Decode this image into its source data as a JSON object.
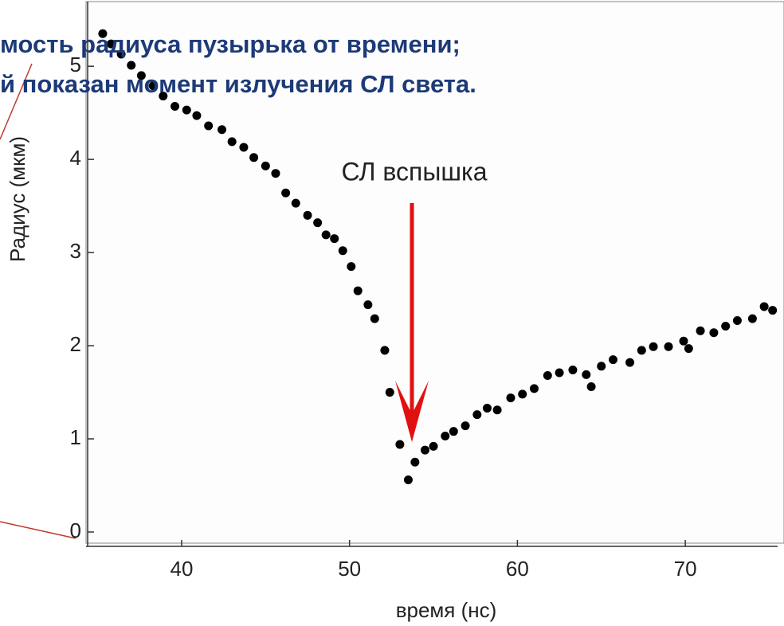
{
  "chart_data": {
    "type": "scatter",
    "title_lines": [
      "мость радиуса пузырька от времени;",
      "й показан момент излучения СЛ света."
    ],
    "annotation": "СЛ вспышка",
    "x_label": "время (нс)",
    "y_label": "Радиус (мкм)",
    "color": "#000000",
    "xlim": [
      34.9,
      75.5
    ],
    "ylim": [
      0,
      5.6
    ],
    "xticks": [
      40,
      50,
      60,
      70
    ],
    "yticks": [
      0,
      1,
      2,
      3,
      4,
      5
    ],
    "x": [
      35.3,
      35.8,
      36.4,
      37.0,
      37.6,
      38.3,
      38.9,
      39.6,
      40.3,
      40.9,
      41.6,
      42.4,
      43.0,
      43.7,
      44.3,
      45.0,
      45.6,
      46.2,
      46.8,
      47.5,
      48.1,
      48.6,
      49.1,
      49.6,
      50.1,
      50.5,
      51.1,
      51.5,
      52.1,
      52.4,
      53.0,
      53.5,
      53.9,
      54.5,
      55.0,
      55.7,
      56.2,
      56.9,
      57.6,
      58.2,
      58.8,
      59.6,
      60.3,
      61.0,
      61.8,
      62.5,
      63.3,
      64.1,
      64.4,
      65.0,
      65.7,
      66.7,
      67.4,
      68.1,
      69.0,
      69.9,
      70.2,
      70.9,
      71.7,
      72.4,
      73.1,
      74.0,
      74.7,
      75.2
    ],
    "values": [
      5.35,
      5.24,
      5.13,
      5.01,
      4.9,
      4.79,
      4.68,
      4.57,
      4.53,
      4.47,
      4.36,
      4.32,
      4.19,
      4.13,
      4.02,
      3.93,
      3.85,
      3.64,
      3.53,
      3.4,
      3.32,
      3.19,
      3.15,
      3.02,
      2.85,
      2.59,
      2.44,
      2.29,
      1.95,
      1.5,
      0.94,
      0.56,
      0.75,
      0.88,
      0.92,
      1.03,
      1.08,
      1.14,
      1.26,
      1.33,
      1.31,
      1.44,
      1.48,
      1.54,
      1.68,
      1.71,
      1.74,
      1.69,
      1.56,
      1.78,
      1.85,
      1.82,
      1.95,
      1.99,
      1.99,
      2.05,
      1.97,
      2.16,
      2.14,
      2.21,
      2.27,
      2.29,
      2.42,
      2.38
    ]
  }
}
